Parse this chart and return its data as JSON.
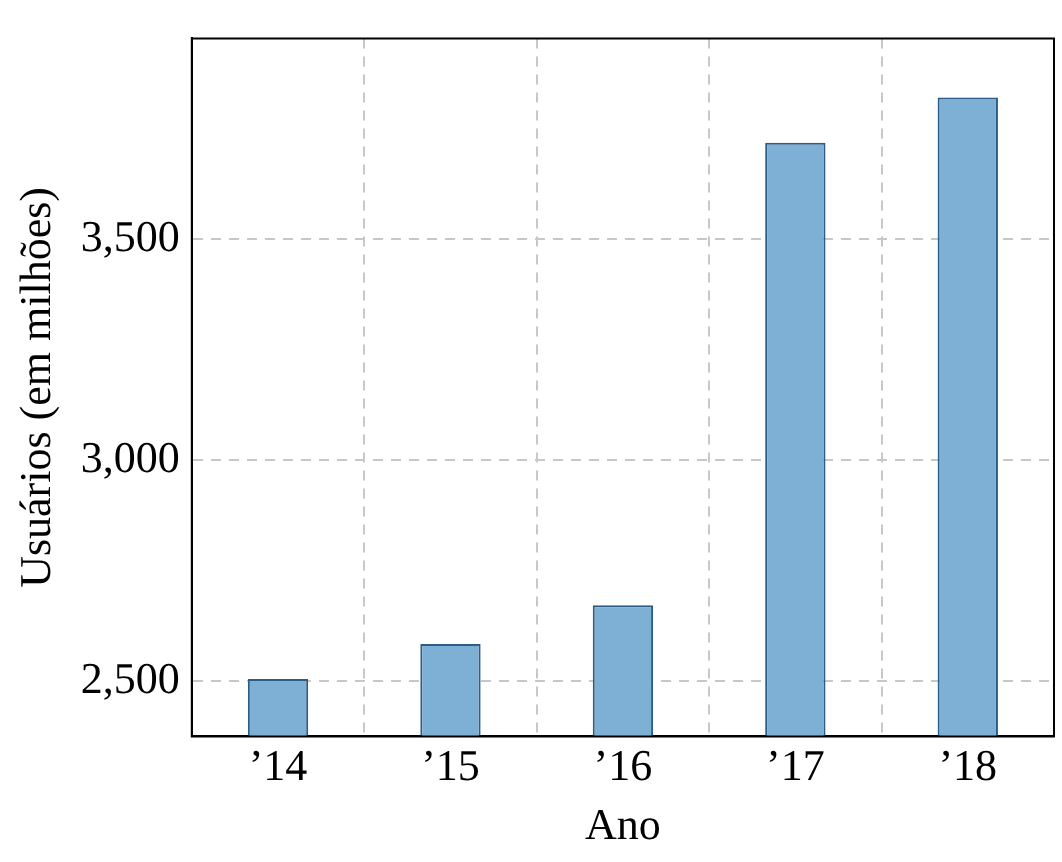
{
  "chart_data": {
    "type": "bar",
    "xlabel": "Ano",
    "ylabel": "Usuários (em milhões)",
    "categories": [
      "’14",
      "’15",
      "’16",
      "’17",
      "’18"
    ],
    "values": [
      2505,
      2584,
      2672,
      3719,
      3821
    ],
    "color": "#7eb0d5",
    "ylim": [
      2375,
      3955
    ],
    "yticks": [
      {
        "value": 2500,
        "label": "2,500"
      },
      {
        "value": 3000,
        "label": "3,000"
      },
      {
        "value": 3500,
        "label": "3,500"
      }
    ],
    "grid": true,
    "legend": false
  }
}
